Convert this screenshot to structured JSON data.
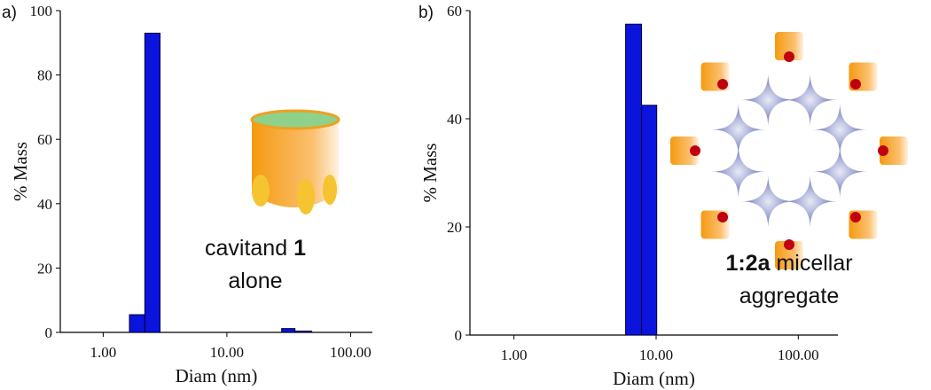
{
  "chart_data": [
    {
      "type": "histogram",
      "panel_label": "a)",
      "xlabel": "Diam (nm)",
      "ylabel": "% Mass",
      "xscale": "log",
      "xlim": [
        0.45,
        150
      ],
      "ylim": [
        0,
        100
      ],
      "xticks": [
        {
          "value": 1,
          "label": "1.00"
        },
        {
          "value": 10,
          "label": "10.00"
        },
        {
          "value": 100,
          "label": "100.00"
        }
      ],
      "yticks": [
        0,
        20,
        40,
        60,
        80,
        100
      ],
      "bins": [
        1.63,
        2.17,
        2.88,
        27.7,
        35.5,
        48.5
      ],
      "values": [
        5.5,
        93,
        0,
        1.2,
        0.4
      ],
      "color": "#0a14dc",
      "annotation": {
        "line1": "cavitand",
        "line1_bold": "1",
        "line2": "alone"
      }
    },
    {
      "type": "histogram",
      "panel_label": "b)",
      "xlabel": "Diam (nm)",
      "ylabel": "% Mass",
      "xscale": "log",
      "xlim": [
        0.49,
        190
      ],
      "ylim": [
        0,
        60
      ],
      "xticks": [
        {
          "value": 1,
          "label": "1.00"
        },
        {
          "value": 10,
          "label": "10.00"
        },
        {
          "value": 100,
          "label": "100.00"
        }
      ],
      "yticks": [
        0,
        20,
        40,
        60
      ],
      "bins": [
        6.1,
        7.9,
        10.1
      ],
      "values": [
        57.5,
        42.5
      ],
      "color": "#0a14dc",
      "annotation": {
        "line1_bold": "1:2a",
        "line1": "micellar",
        "line2": "aggregate"
      }
    }
  ]
}
